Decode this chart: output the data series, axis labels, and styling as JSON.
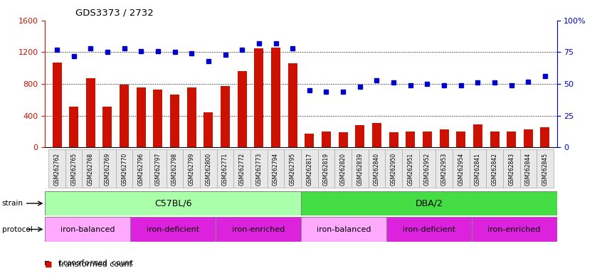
{
  "title": "GDS3373 / 2732",
  "samples": [
    "GSM262762",
    "GSM262765",
    "GSM262768",
    "GSM262769",
    "GSM262770",
    "GSM262796",
    "GSM262797",
    "GSM262798",
    "GSM262799",
    "GSM262800",
    "GSM262771",
    "GSM262772",
    "GSM262773",
    "GSM262794",
    "GSM262795",
    "GSM262817",
    "GSM262819",
    "GSM262820",
    "GSM262839",
    "GSM262840",
    "GSM262950",
    "GSM262951",
    "GSM262952",
    "GSM262953",
    "GSM262954",
    "GSM262841",
    "GSM262842",
    "GSM262843",
    "GSM262844",
    "GSM262845"
  ],
  "transformed_count": [
    1070,
    510,
    870,
    510,
    790,
    760,
    730,
    670,
    760,
    440,
    770,
    960,
    1250,
    1260,
    1060,
    170,
    200,
    190,
    280,
    310,
    190,
    200,
    200,
    230,
    200,
    290,
    200,
    200,
    230,
    250
  ],
  "percentile_rank": [
    77,
    72,
    78,
    75,
    78,
    76,
    76,
    75,
    74,
    68,
    73,
    77,
    82,
    82,
    78,
    45,
    44,
    44,
    48,
    53,
    51,
    49,
    50,
    49,
    49,
    51,
    51,
    49,
    52,
    56
  ],
  "ylim_left": [
    0,
    1600
  ],
  "ylim_right": [
    0,
    100
  ],
  "yticks_left": [
    0,
    400,
    800,
    1200,
    1600
  ],
  "yticks_right": [
    0,
    25,
    50,
    75,
    100
  ],
  "hlines": [
    400,
    800,
    1200
  ],
  "bar_color": "#cc1100",
  "dot_color": "#0000cc",
  "strain_groups": [
    {
      "label": "C57BL/6",
      "start": 0,
      "end": 15,
      "color": "#aaffaa"
    },
    {
      "label": "DBA/2",
      "start": 15,
      "end": 30,
      "color": "#44dd44"
    }
  ],
  "protocol_groups": [
    {
      "label": "iron-balanced",
      "start": 0,
      "end": 5,
      "color": "#ffaaff"
    },
    {
      "label": "iron-deficient",
      "start": 5,
      "end": 10,
      "color": "#dd22dd"
    },
    {
      "label": "iron-enriched",
      "start": 10,
      "end": 15,
      "color": "#dd22dd"
    },
    {
      "label": "iron-balanced",
      "start": 15,
      "end": 20,
      "color": "#ffaaff"
    },
    {
      "label": "iron-deficient",
      "start": 20,
      "end": 25,
      "color": "#dd22dd"
    },
    {
      "label": "iron-enriched",
      "start": 25,
      "end": 30,
      "color": "#dd22dd"
    }
  ],
  "fig_width": 8.46,
  "fig_height": 3.84,
  "dpi": 100
}
